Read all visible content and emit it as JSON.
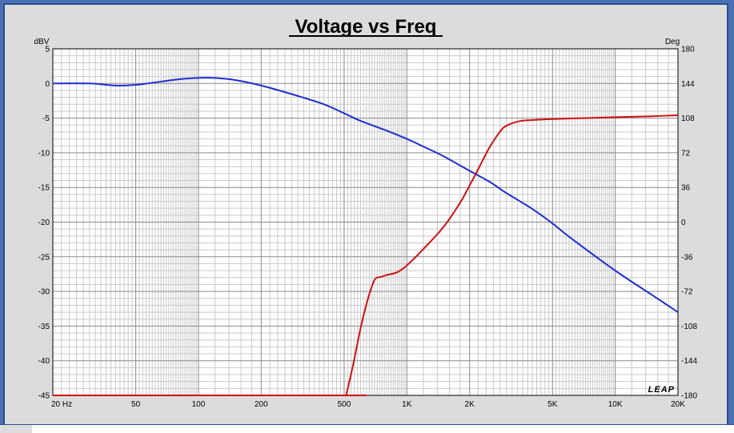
{
  "chart_data": {
    "type": "line",
    "title": "Voltage vs Freq",
    "xlabel": "",
    "ylabel_left": "dBV",
    "ylabel_right": "Deg",
    "x_scale": "log",
    "xlim": [
      20,
      20000
    ],
    "ylim_left": [
      -45,
      5
    ],
    "ylim_right": [
      -180,
      180
    ],
    "grid": true,
    "logo_text": "LEAP",
    "x_tick_values": [
      20,
      50,
      100,
      200,
      500,
      1000,
      2000,
      5000,
      10000,
      20000
    ],
    "x_tick_labels": [
      "20  Hz",
      "50",
      "100",
      "200",
      "500",
      "1K",
      "2K",
      "5K",
      "10K",
      "20K"
    ],
    "y_left_ticks": [
      5,
      0,
      -5,
      -10,
      -15,
      -20,
      -25,
      -30,
      -35,
      -40,
      -45
    ],
    "y_left_tick_labels": [
      "5",
      "0",
      "-5",
      "-10",
      "-15",
      "-20",
      "-25",
      "-30",
      "-35",
      "-40",
      "-45"
    ],
    "y_right_ticks": [
      180,
      144,
      108,
      72,
      36,
      0,
      -36,
      -72,
      -108,
      -144,
      -180
    ],
    "y_right_tick_labels": [
      "180",
      "144",
      "108",
      "72",
      "36",
      "0",
      "-36",
      "-72",
      "-108",
      "-144",
      "-180"
    ],
    "series": [
      {
        "axis": "left",
        "color": "#1c2fcf",
        "x": [
          20,
          30,
          40,
          50,
          60,
          80,
          100,
          120,
          150,
          200,
          300,
          400,
          500,
          600,
          800,
          1000,
          1200,
          1500,
          2000,
          2500,
          3000,
          4000,
          5000,
          6000,
          8000,
          10000,
          12000,
          15000,
          20000
        ],
        "y": [
          0,
          0,
          -0.3,
          -0.2,
          0.1,
          0.6,
          0.8,
          0.8,
          0.5,
          -0.3,
          -1.8,
          -3.0,
          -4.3,
          -5.4,
          -6.8,
          -8.0,
          -9.1,
          -10.5,
          -12.6,
          -14.2,
          -15.8,
          -18.1,
          -20.2,
          -22.1,
          -24.9,
          -27.0,
          -28.6,
          -30.5,
          -33.0
        ]
      },
      {
        "axis": "right",
        "color": "#cc1111",
        "x": [
          20,
          500,
          510,
          550,
          600,
          650,
          700,
          750,
          800,
          900,
          1000,
          1200,
          1500,
          1800,
          2000,
          2200,
          2500,
          2800,
          3000,
          3500,
          4000,
          5000,
          7000,
          10000,
          15000,
          20000
        ],
        "y": [
          -180,
          -180,
          -180,
          -150,
          -110,
          -80,
          -60,
          -57,
          -55,
          -52,
          -45,
          -28,
          -5,
          20,
          38,
          55,
          78,
          94,
          100,
          105,
          106,
          107,
          108,
          109,
          110,
          111
        ]
      }
    ]
  }
}
